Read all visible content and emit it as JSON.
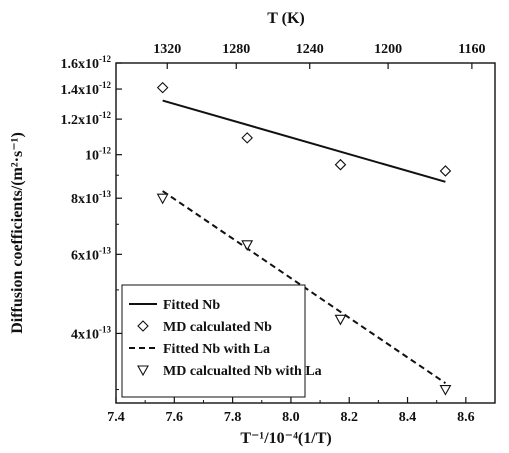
{
  "chart_data": {
    "type": "scatter",
    "title": "",
    "xlabel": "T⁻¹/10⁻⁴(1/T)",
    "ylabel": "Diffusion coefficients/(m²·s⁻¹)",
    "top_xlabel": "T (K)",
    "xlim": [
      7.4,
      8.7
    ],
    "ylim": [
      2.8e-13,
      1.6e-12
    ],
    "yscale": "log",
    "x_ticks": [
      {
        "value": 7.4,
        "label": "7.4"
      },
      {
        "value": 7.6,
        "label": "7.6"
      },
      {
        "value": 7.8,
        "label": "7.8"
      },
      {
        "value": 8.0,
        "label": "8.0"
      },
      {
        "value": 8.2,
        "label": "8.2"
      },
      {
        "value": 8.4,
        "label": "8.4"
      },
      {
        "value": 8.6,
        "label": "8.6"
      }
    ],
    "top_ticks": [
      {
        "value": 1320,
        "label": "1320"
      },
      {
        "value": 1280,
        "label": "1280"
      },
      {
        "value": 1240,
        "label": "1240"
      },
      {
        "value": 1200,
        "label": "1200"
      },
      {
        "value": 1160,
        "label": "1160"
      }
    ],
    "y_ticks": [
      {
        "value": 1.6e-12,
        "mant": "1.6x10",
        "exp": "-12"
      },
      {
        "value": 1.4e-12,
        "mant": "1.4x10",
        "exp": "-12"
      },
      {
        "value": 1.2e-12,
        "mant": "1.2x10",
        "exp": "-12"
      },
      {
        "value": 1e-12,
        "mant": "10",
        "exp": "-12"
      },
      {
        "value": 8e-13,
        "mant": "8x10",
        "exp": "-13"
      },
      {
        "value": 6e-13,
        "mant": "6x10",
        "exp": "-13"
      },
      {
        "value": 4e-13,
        "mant": "4x10",
        "exp": "-13"
      }
    ],
    "series": [
      {
        "name": "Fitted Nb",
        "kind": "line",
        "dash": "solid",
        "x": [
          7.56,
          8.53
        ],
        "y": [
          1.32e-12,
          8.7e-13
        ]
      },
      {
        "name": "MD calculated Nb",
        "kind": "scatter",
        "marker": "diamond",
        "x": [
          7.56,
          7.85,
          8.17,
          8.53
        ],
        "y": [
          1.41e-12,
          1.09e-12,
          9.5e-13,
          9.2e-13
        ]
      },
      {
        "name": "Fitted Nb with La",
        "kind": "line",
        "dash": "dashed",
        "x": [
          7.56,
          8.53
        ],
        "y": [
          8.3e-13,
          3.1e-13
        ]
      },
      {
        "name": "MD calcualted Nb with La",
        "kind": "scatter",
        "marker": "triangle-down",
        "x": [
          7.56,
          7.85,
          8.17,
          8.53
        ],
        "y": [
          8e-13,
          6.3e-13,
          4.3e-13,
          3e-13
        ]
      }
    ],
    "legend_position": "bottom-left",
    "grid": false,
    "colors": {
      "ink": "#111111"
    }
  }
}
